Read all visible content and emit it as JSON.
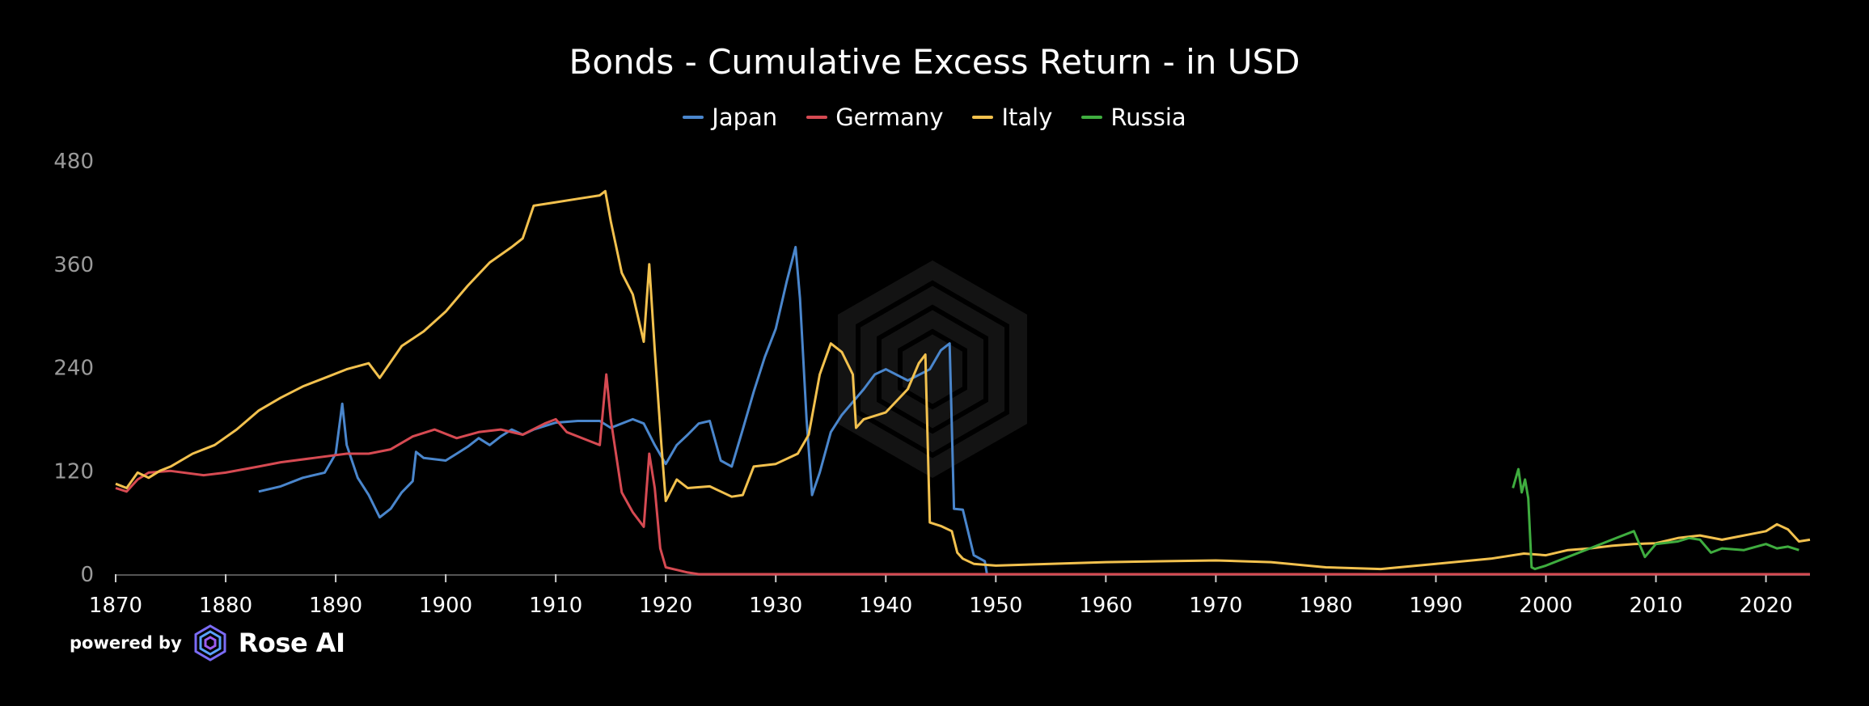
{
  "chart_data": {
    "type": "line",
    "title": "Bonds - Cumulative Excess Return - in USD",
    "xlabel": "",
    "ylabel": "",
    "xlim": [
      1870,
      2024
    ],
    "ylim": [
      0,
      480
    ],
    "x_ticks": [
      "1870",
      "1880",
      "1890",
      "1900",
      "1910",
      "1920",
      "1930",
      "1940",
      "1950",
      "1960",
      "1970",
      "1980",
      "1990",
      "2000",
      "2010",
      "2020"
    ],
    "y_ticks": [
      "0",
      "120",
      "240",
      "360",
      "480"
    ],
    "grid": false,
    "legend_position": "top-center",
    "series": [
      {
        "name": "Japan",
        "color": "#4a86cc",
        "points": [
          [
            1883,
            96
          ],
          [
            1885,
            102
          ],
          [
            1887,
            112
          ],
          [
            1889,
            118
          ],
          [
            1890,
            140
          ],
          [
            1890.6,
            198
          ],
          [
            1891,
            150
          ],
          [
            1892,
            112
          ],
          [
            1893,
            92
          ],
          [
            1894,
            66
          ],
          [
            1895,
            76
          ],
          [
            1896,
            95
          ],
          [
            1897,
            108
          ],
          [
            1897.3,
            142
          ],
          [
            1898,
            135
          ],
          [
            1900,
            132
          ],
          [
            1901,
            140
          ],
          [
            1902,
            148
          ],
          [
            1903,
            158
          ],
          [
            1904,
            150
          ],
          [
            1905,
            160
          ],
          [
            1906,
            168
          ],
          [
            1907,
            162
          ],
          [
            1908,
            168
          ],
          [
            1910,
            176
          ],
          [
            1912,
            178
          ],
          [
            1914,
            178
          ],
          [
            1915,
            170
          ],
          [
            1917,
            180
          ],
          [
            1918,
            175
          ],
          [
            1919,
            150
          ],
          [
            1920,
            128
          ],
          [
            1921,
            150
          ],
          [
            1922,
            162
          ],
          [
            1923,
            175
          ],
          [
            1924,
            178
          ],
          [
            1925,
            132
          ],
          [
            1926,
            125
          ],
          [
            1927,
            168
          ],
          [
            1928,
            212
          ],
          [
            1929,
            252
          ],
          [
            1930,
            285
          ],
          [
            1931,
            340
          ],
          [
            1931.8,
            380
          ],
          [
            1932.2,
            320
          ],
          [
            1932.8,
            180
          ],
          [
            1933.3,
            92
          ],
          [
            1934,
            118
          ],
          [
            1935,
            165
          ],
          [
            1936,
            185
          ],
          [
            1937,
            200
          ],
          [
            1938,
            215
          ],
          [
            1939,
            232
          ],
          [
            1940,
            238
          ],
          [
            1942,
            225
          ],
          [
            1944,
            238
          ],
          [
            1945,
            260
          ],
          [
            1945.8,
            268
          ],
          [
            1946.2,
            76
          ],
          [
            1947,
            75
          ],
          [
            1948,
            22
          ],
          [
            1949,
            15
          ],
          [
            1949.2,
            0
          ],
          [
            2024,
            0
          ]
        ]
      },
      {
        "name": "Germany",
        "color": "#d64a52",
        "points": [
          [
            1870,
            100
          ],
          [
            1871,
            96
          ],
          [
            1872,
            110
          ],
          [
            1873,
            118
          ],
          [
            1875,
            120
          ],
          [
            1878,
            115
          ],
          [
            1880,
            118
          ],
          [
            1883,
            125
          ],
          [
            1885,
            130
          ],
          [
            1888,
            135
          ],
          [
            1891,
            140
          ],
          [
            1893,
            140
          ],
          [
            1895,
            145
          ],
          [
            1897,
            160
          ],
          [
            1899,
            168
          ],
          [
            1901,
            158
          ],
          [
            1903,
            165
          ],
          [
            1905,
            168
          ],
          [
            1907,
            162
          ],
          [
            1909,
            175
          ],
          [
            1910,
            180
          ],
          [
            1911,
            165
          ],
          [
            1913,
            155
          ],
          [
            1914,
            150
          ],
          [
            1914.6,
            232
          ],
          [
            1915,
            180
          ],
          [
            1916,
            95
          ],
          [
            1917,
            72
          ],
          [
            1918,
            55
          ],
          [
            1918.5,
            140
          ],
          [
            1919,
            100
          ],
          [
            1919.5,
            30
          ],
          [
            1920,
            8
          ],
          [
            1921,
            5
          ],
          [
            1922,
            2
          ],
          [
            1923,
            0
          ],
          [
            2024,
            0
          ]
        ]
      },
      {
        "name": "Italy",
        "color": "#f2c14e",
        "points": [
          [
            1870,
            105
          ],
          [
            1871,
            100
          ],
          [
            1872,
            118
          ],
          [
            1873,
            112
          ],
          [
            1874,
            120
          ],
          [
            1875,
            125
          ],
          [
            1877,
            140
          ],
          [
            1879,
            150
          ],
          [
            1881,
            168
          ],
          [
            1883,
            190
          ],
          [
            1885,
            205
          ],
          [
            1887,
            218
          ],
          [
            1889,
            228
          ],
          [
            1891,
            238
          ],
          [
            1893,
            245
          ],
          [
            1894,
            228
          ],
          [
            1896,
            265
          ],
          [
            1898,
            282
          ],
          [
            1900,
            305
          ],
          [
            1902,
            335
          ],
          [
            1904,
            362
          ],
          [
            1906,
            380
          ],
          [
            1907,
            390
          ],
          [
            1908,
            428
          ],
          [
            1910,
            432
          ],
          [
            1912,
            436
          ],
          [
            1914,
            440
          ],
          [
            1914.5,
            445
          ],
          [
            1915,
            410
          ],
          [
            1916,
            350
          ],
          [
            1917,
            325
          ],
          [
            1918,
            270
          ],
          [
            1918.5,
            360
          ],
          [
            1919,
            260
          ],
          [
            1919.6,
            150
          ],
          [
            1920,
            85
          ],
          [
            1921,
            110
          ],
          [
            1922,
            100
          ],
          [
            1924,
            102
          ],
          [
            1926,
            90
          ],
          [
            1927,
            92
          ],
          [
            1928,
            125
          ],
          [
            1930,
            128
          ],
          [
            1932,
            140
          ],
          [
            1933,
            162
          ],
          [
            1934,
            232
          ],
          [
            1935,
            268
          ],
          [
            1936,
            258
          ],
          [
            1937,
            232
          ],
          [
            1937.3,
            170
          ],
          [
            1938,
            180
          ],
          [
            1940,
            188
          ],
          [
            1942,
            215
          ],
          [
            1943,
            245
          ],
          [
            1943.6,
            255
          ],
          [
            1944,
            60
          ],
          [
            1945,
            56
          ],
          [
            1946,
            50
          ],
          [
            1946.5,
            25
          ],
          [
            1947,
            18
          ],
          [
            1948,
            12
          ],
          [
            1950,
            10
          ],
          [
            1955,
            12
          ],
          [
            1960,
            14
          ],
          [
            1965,
            15
          ],
          [
            1970,
            16
          ],
          [
            1975,
            14
          ],
          [
            1980,
            8
          ],
          [
            1985,
            6
          ],
          [
            1990,
            12
          ],
          [
            1995,
            18
          ],
          [
            1998,
            24
          ],
          [
            2000,
            22
          ],
          [
            2002,
            28
          ],
          [
            2004,
            30
          ],
          [
            2006,
            33
          ],
          [
            2008,
            35
          ],
          [
            2010,
            36
          ],
          [
            2012,
            42
          ],
          [
            2014,
            45
          ],
          [
            2016,
            40
          ],
          [
            2018,
            45
          ],
          [
            2020,
            50
          ],
          [
            2021,
            58
          ],
          [
            2022,
            52
          ],
          [
            2023,
            38
          ],
          [
            2024,
            40
          ]
        ]
      },
      {
        "name": "Russia",
        "color": "#3fad3f",
        "points": [
          [
            1997,
            100
          ],
          [
            1997.5,
            122
          ],
          [
            1997.8,
            95
          ],
          [
            1998.1,
            110
          ],
          [
            1998.4,
            88
          ],
          [
            1998.7,
            8
          ],
          [
            1999,
            6
          ],
          [
            2000,
            10
          ],
          [
            2002,
            20
          ],
          [
            2004,
            30
          ],
          [
            2006,
            40
          ],
          [
            2008,
            50
          ],
          [
            2009,
            20
          ],
          [
            2010,
            35
          ],
          [
            2012,
            38
          ],
          [
            2013,
            42
          ],
          [
            2014,
            40
          ],
          [
            2015,
            25
          ],
          [
            2016,
            30
          ],
          [
            2018,
            28
          ],
          [
            2020,
            35
          ],
          [
            2021,
            30
          ],
          [
            2022,
            32
          ],
          [
            2023,
            28
          ]
        ]
      }
    ]
  },
  "legend": [
    {
      "label": "Japan",
      "color": "#4a86cc"
    },
    {
      "label": "Germany",
      "color": "#d64a52"
    },
    {
      "label": "Italy",
      "color": "#f2c14e"
    },
    {
      "label": "Russia",
      "color": "#3fad3f"
    }
  ],
  "brand": {
    "powered_by": "powered by",
    "name": "Rose AI",
    "logo_icon": "rose-ai-logo-icon"
  },
  "watermark_icon": "hexagon-watermark-icon"
}
